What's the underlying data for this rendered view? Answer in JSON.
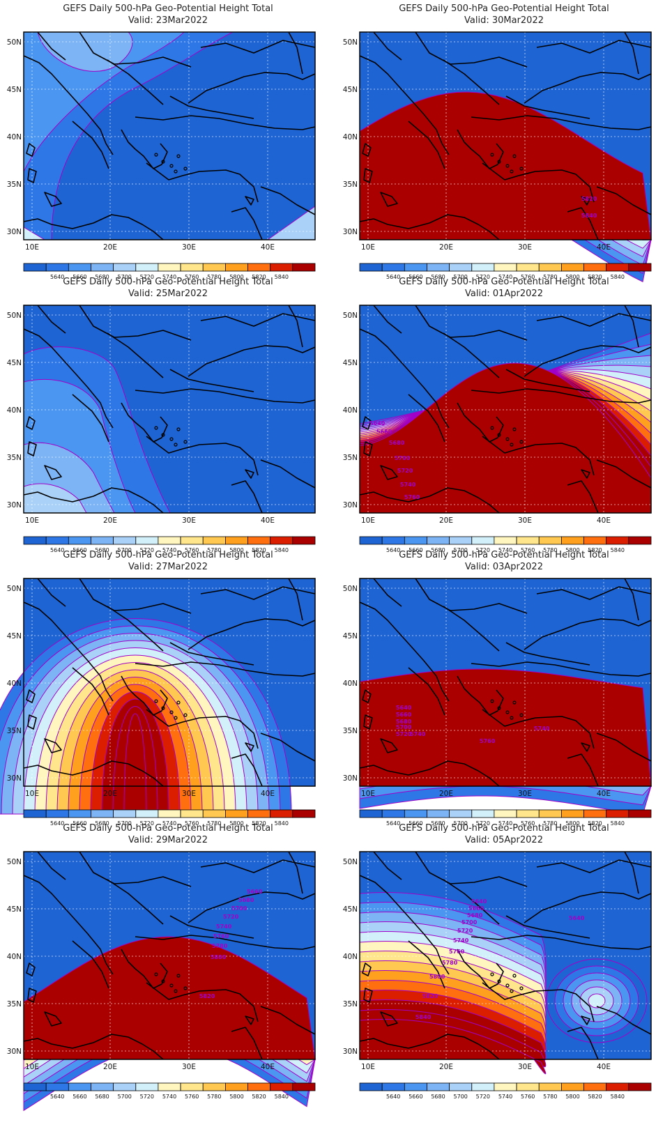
{
  "title": "GEFS Daily 500-hPa Geo-Potential Height Total",
  "colorbar": {
    "levels": [
      5640,
      5660,
      5680,
      5700,
      5720,
      5740,
      5760,
      5780,
      5800,
      5820,
      5840
    ],
    "colors": [
      "#1e64d2",
      "#2d78e6",
      "#4b96f0",
      "#7db4f5",
      "#aad2f8",
      "#d2f0fa",
      "#fff5be",
      "#ffe68c",
      "#ffc850",
      "#ffa01e",
      "#ff6e0f",
      "#dc1e00",
      "#aa0000"
    ]
  },
  "axes": {
    "lon_ticks": [
      "10E",
      "20E",
      "30E",
      "40E"
    ],
    "lat_ticks": [
      "50N",
      "45N",
      "40N",
      "35N",
      "30N"
    ]
  },
  "contour_color": "#a000c8",
  "panels": [
    {
      "valid": "Valid: 23Mar2022",
      "labels": []
    },
    {
      "valid": "Valid: 30Mar2022",
      "labels": [
        "5820",
        "5840"
      ]
    },
    {
      "valid": "Valid: 25Mar2022",
      "labels": []
    },
    {
      "valid": "Valid: 01Apr2022",
      "labels": [
        "5640",
        "5660",
        "5680",
        "5700",
        "5720",
        "5740",
        "5760"
      ]
    },
    {
      "valid": "Valid: 27Mar2022",
      "labels": []
    },
    {
      "valid": "Valid: 03Apr2022",
      "labels": [
        "5640",
        "5660",
        "5680",
        "5700",
        "5720",
        "5740",
        "5740",
        "5760"
      ]
    },
    {
      "valid": "Valid: 29Mar2022",
      "labels": [
        "5660",
        "5680",
        "5700",
        "5720",
        "5740",
        "5760",
        "5780",
        "5800",
        "5820"
      ]
    },
    {
      "valid": "Valid: 05Apr2022",
      "labels": [
        "5640",
        "5660",
        "5680",
        "5700",
        "5720",
        "5740",
        "5760",
        "5780",
        "5800",
        "5820",
        "5840",
        "5640"
      ]
    }
  ]
}
